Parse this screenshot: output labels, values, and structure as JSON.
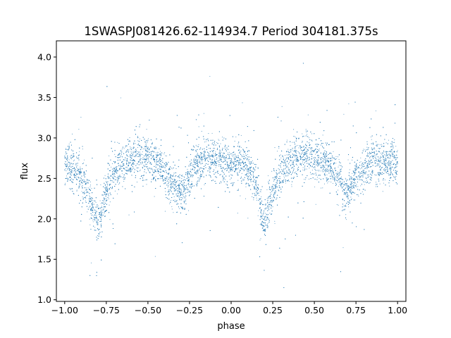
{
  "chart_data": {
    "type": "scatter",
    "title": "1SWASPJ081426.62-114934.7 Period 304181.375s",
    "xlabel": "phase",
    "ylabel": "flux",
    "xlim": [
      -1.05,
      1.05
    ],
    "ylim": [
      0.98,
      4.2
    ],
    "xticks": [
      -1.0,
      -0.75,
      -0.5,
      -0.25,
      0.0,
      0.25,
      0.5,
      0.75,
      1.0
    ],
    "xtick_labels": [
      "−1.00",
      "−0.75",
      "−0.50",
      "−0.25",
      "0.00",
      "0.25",
      "0.50",
      "0.75",
      "1.00"
    ],
    "yticks": [
      1.0,
      1.5,
      2.0,
      2.5,
      3.0,
      3.5,
      4.0
    ],
    "ytick_labels": [
      "1.0",
      "1.5",
      "2.0",
      "2.5",
      "3.0",
      "3.5",
      "4.0"
    ],
    "grid": false,
    "marker_color": "#1f77b4",
    "series": [
      {
        "x": [
          -1.0,
          -0.95,
          -0.9,
          -0.85,
          -0.82,
          -0.8,
          -0.78,
          -0.75,
          -0.7,
          -0.65,
          -0.6,
          -0.55,
          -0.5,
          -0.45,
          -0.4,
          -0.35,
          -0.32,
          -0.3,
          -0.28,
          -0.25,
          -0.2,
          -0.15,
          -0.1,
          -0.05,
          0.0,
          0.05,
          0.1,
          0.15,
          0.18,
          0.2,
          0.22,
          0.25,
          0.3,
          0.35,
          0.4,
          0.45,
          0.5,
          0.55,
          0.6,
          0.65,
          0.68,
          0.7,
          0.72,
          0.75,
          0.8,
          0.85,
          0.9,
          0.95,
          1.0
        ],
        "y": [
          2.68,
          2.62,
          2.5,
          2.22,
          2.05,
          1.95,
          2.05,
          2.35,
          2.58,
          2.68,
          2.75,
          2.78,
          2.75,
          2.68,
          2.58,
          2.42,
          2.32,
          2.3,
          2.35,
          2.55,
          2.7,
          2.74,
          2.72,
          2.7,
          2.7,
          2.68,
          2.62,
          2.45,
          2.1,
          1.95,
          2.05,
          2.35,
          2.58,
          2.7,
          2.76,
          2.8,
          2.76,
          2.72,
          2.65,
          2.5,
          2.35,
          2.3,
          2.38,
          2.52,
          2.65,
          2.7,
          2.7,
          2.7,
          2.68
        ]
      }
    ]
  }
}
